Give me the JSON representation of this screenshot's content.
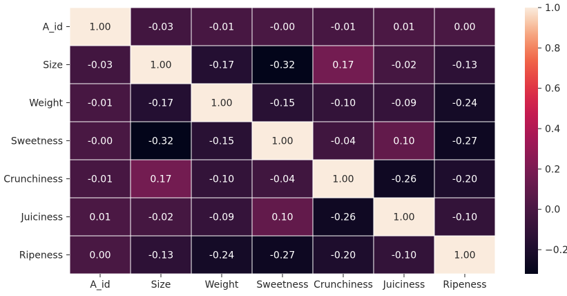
{
  "chart_data": {
    "type": "heatmap",
    "categories": [
      "A_id",
      "Size",
      "Weight",
      "Sweetness",
      "Crunchiness",
      "Juiciness",
      "Ripeness"
    ],
    "values": [
      [
        1.0,
        -0.03,
        -0.01,
        -0.0,
        -0.01,
        0.01,
        0.0
      ],
      [
        -0.03,
        1.0,
        -0.17,
        -0.32,
        0.17,
        -0.02,
        -0.13
      ],
      [
        -0.01,
        -0.17,
        1.0,
        -0.15,
        -0.1,
        -0.09,
        -0.24
      ],
      [
        -0.0,
        -0.32,
        -0.15,
        1.0,
        -0.04,
        0.1,
        -0.27
      ],
      [
        -0.01,
        0.17,
        -0.1,
        -0.04,
        1.0,
        -0.26,
        -0.2
      ],
      [
        0.01,
        -0.02,
        -0.09,
        0.1,
        -0.26,
        1.0,
        -0.1
      ],
      [
        0.0,
        -0.13,
        -0.24,
        -0.27,
        -0.2,
        -0.1,
        1.0
      ]
    ],
    "cell_labels": [
      [
        "1.00",
        "-0.03",
        "-0.01",
        "-0.00",
        "-0.01",
        "0.01",
        "0.00"
      ],
      [
        "-0.03",
        "1.00",
        "-0.17",
        "-0.32",
        "0.17",
        "-0.02",
        "-0.13"
      ],
      [
        "-0.01",
        "-0.17",
        "1.00",
        "-0.15",
        "-0.10",
        "-0.09",
        "-0.24"
      ],
      [
        "-0.00",
        "-0.32",
        "-0.15",
        "1.00",
        "-0.04",
        "0.10",
        "-0.27"
      ],
      [
        "-0.01",
        "0.17",
        "-0.10",
        "-0.04",
        "1.00",
        "-0.26",
        "-0.20"
      ],
      [
        "0.01",
        "-0.02",
        "-0.09",
        "0.10",
        "-0.26",
        "1.00",
        "-0.10"
      ],
      [
        "0.00",
        "-0.13",
        "-0.24",
        "-0.27",
        "-0.20",
        "-0.10",
        "1.00"
      ]
    ],
    "colorbar": {
      "min": -0.32,
      "max": 1.0,
      "ticks": [
        -0.2,
        0.0,
        0.2,
        0.4,
        0.6,
        0.8,
        1.0
      ],
      "tick_labels": [
        "−0.2",
        "0.0",
        "0.2",
        "0.4",
        "0.6",
        "0.8",
        "1.0"
      ],
      "colormap": "rocket"
    },
    "grid": "white lines between cells",
    "title": "",
    "xlabel": "",
    "ylabel": ""
  }
}
